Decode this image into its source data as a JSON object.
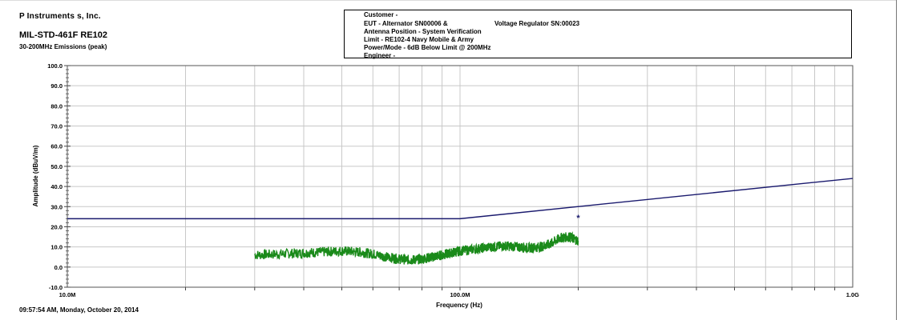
{
  "header": {
    "company": "P          Instruments            s, Inc.",
    "title": "MIL-STD-461F RE102",
    "subtitle": "30-200MHz Emissions (peak)"
  },
  "info_box": {
    "customer": "Customer -",
    "eut": "EUT -          Alternator SN00006 &",
    "eut_extra": "Voltage Regulator SN:00023",
    "antenna": "Antenna Position - System Verification",
    "limit": "Limit - RE102-4 Navy Mobile & Army",
    "power_mode": "Power/Mode - 6dB Below Limit @ 200MHz",
    "engineer": "Engineer -"
  },
  "footer": {
    "timestamp": "09:57:54 AM, Monday, October 20, 2014"
  },
  "chart_data": {
    "type": "line",
    "xlabel": "Frequency (Hz)",
    "ylabel": "Amplitude (dBuV/m)",
    "x_scale": "log",
    "xlim": [
      10000000,
      1000000000
    ],
    "ylim": [
      -10,
      100
    ],
    "grid": true,
    "x_ticks": [
      {
        "value": 10000000,
        "label": "10.0M"
      },
      {
        "value": 100000000,
        "label": "100.0M"
      },
      {
        "value": 1000000000,
        "label": "1.0G"
      }
    ],
    "y_ticks": [
      {
        "value": 100,
        "label": "100.0"
      },
      {
        "value": 90,
        "label": "90.0"
      },
      {
        "value": 80,
        "label": "80.0"
      },
      {
        "value": 70,
        "label": "70.0"
      },
      {
        "value": 60,
        "label": "60.0"
      },
      {
        "value": 50,
        "label": "50.0"
      },
      {
        "value": 40,
        "label": "40.0"
      },
      {
        "value": 30,
        "label": "30.0"
      },
      {
        "value": 20,
        "label": "20.0"
      },
      {
        "value": 10,
        "label": "10.0"
      },
      {
        "value": 0,
        "label": "0.0"
      },
      {
        "value": -10,
        "label": "-10.0"
      }
    ],
    "series": [
      {
        "color": "#1a1a6e",
        "x": [
          10000000,
          100000000,
          1000000000
        ],
        "y": [
          24,
          24,
          44
        ]
      },
      {
        "color": "#1a8a1a",
        "x": [
          30000000,
          35000000,
          40000000,
          45000000,
          50000000,
          55000000,
          60000000,
          65000000,
          70000000,
          75000000,
          80000000,
          85000000,
          90000000,
          95000000,
          100000000,
          110000000,
          120000000,
          130000000,
          140000000,
          150000000,
          160000000,
          170000000,
          180000000,
          190000000,
          200000000
        ],
        "y": [
          6,
          6.5,
          7,
          7.5,
          8,
          7.5,
          6.5,
          5,
          4,
          3.5,
          4,
          5,
          6,
          7,
          8,
          9,
          10,
          10.5,
          10,
          9.5,
          10,
          11.5,
          14.5,
          15,
          13
        ]
      }
    ],
    "markers": [
      {
        "x": 200000000,
        "y": 25,
        "symbol": "*",
        "color": "#1a1a6e"
      }
    ]
  }
}
